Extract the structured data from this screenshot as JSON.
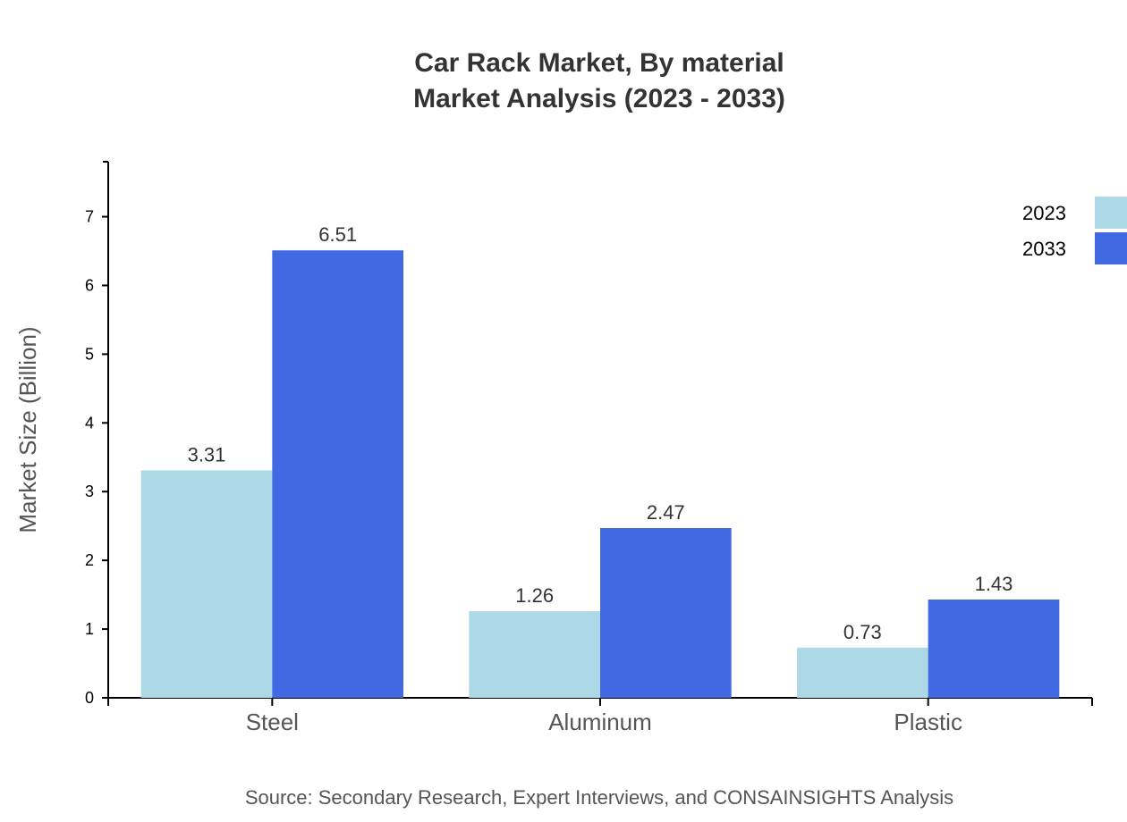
{
  "chart_data": {
    "type": "bar",
    "title": "Car Rack Market, By material",
    "subtitle": "Market Analysis (2023 - 2033)",
    "xlabel": "",
    "ylabel": "Market Size (Billion)",
    "categories": [
      "Steel",
      "Aluminum",
      "Plastic"
    ],
    "series": [
      {
        "name": "2023",
        "color": "#add8e6",
        "values": [
          3.31,
          1.26,
          0.73
        ]
      },
      {
        "name": "2033",
        "color": "#4169e1",
        "values": [
          6.51,
          2.47,
          1.43
        ]
      }
    ],
    "ylim": [
      0,
      7.8
    ],
    "yticks": [
      0,
      1,
      2,
      3,
      4,
      5,
      6,
      7
    ],
    "grid": false,
    "legend_position": "top-right",
    "source": "Source: Secondary Research, Expert Interviews, and CONSAINSIGHTS Analysis"
  }
}
